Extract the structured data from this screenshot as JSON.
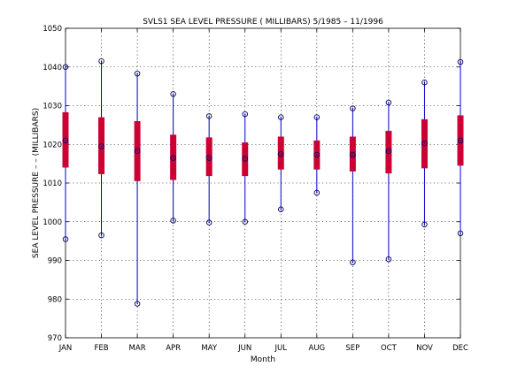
{
  "chart_data": {
    "type": "box",
    "title": "SVLS1  SEA LEVEL PRESSURE ( MILLIBARS) 5/1985 – 11/1996",
    "xlabel": "Month",
    "ylabel": "SEA LEVEL PRESSURE – – (MILLIBARS)",
    "categories": [
      "JAN",
      "FEB",
      "MAR",
      "APR",
      "MAY",
      "JUN",
      "JUL",
      "AUG",
      "SEP",
      "OCT",
      "NOV",
      "DEC"
    ],
    "ylim": [
      970,
      1050
    ],
    "yticks": [
      970,
      980,
      990,
      1000,
      1010,
      1020,
      1030,
      1040,
      1050
    ],
    "grid": true,
    "series": [
      {
        "min": [
          995.5,
          996.5,
          978.8,
          1000.3,
          999.8,
          1000.0,
          1003.2,
          1007.5,
          989.5,
          990.3,
          999.3,
          997.0
        ],
        "q1": [
          1014.0,
          1012.3,
          1010.5,
          1010.8,
          1011.8,
          1011.8,
          1013.5,
          1013.5,
          1013.0,
          1012.5,
          1013.8,
          1014.5
        ],
        "median": [
          1021.0,
          1019.5,
          1018.3,
          1016.5,
          1016.5,
          1016.3,
          1017.5,
          1017.3,
          1017.3,
          1018.3,
          1020.3,
          1021.0
        ],
        "q3": [
          1028.3,
          1027.0,
          1026.0,
          1022.5,
          1021.8,
          1020.5,
          1022.0,
          1021.0,
          1022.0,
          1023.5,
          1026.5,
          1027.5
        ],
        "max": [
          1040.0,
          1041.5,
          1038.3,
          1033.0,
          1027.3,
          1027.8,
          1027.0,
          1027.0,
          1029.3,
          1030.8,
          1036.0,
          1041.3
        ],
        "whisker_color": "#0000cc",
        "box_color": "#cc0033",
        "marker_color": "#000066"
      }
    ]
  }
}
